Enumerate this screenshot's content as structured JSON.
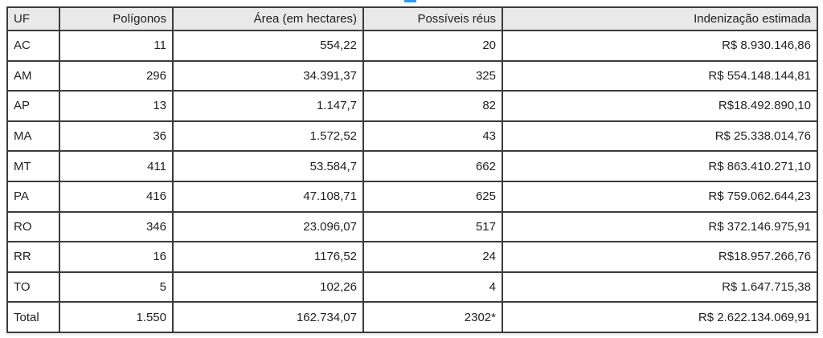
{
  "chart_data": {
    "type": "table",
    "columns": [
      "UF",
      "Polígonos",
      "Área (em hectares)",
      "Possíveis réus",
      "Indenização estimada"
    ],
    "column_ids": [
      "uf",
      "poligonos",
      "area",
      "reus",
      "indenizacao"
    ],
    "rows": [
      [
        "AC",
        "11",
        "554,22",
        "20",
        "R$ 8.930.146,86"
      ],
      [
        "AM",
        "296",
        "34.391,37",
        "325",
        "R$ 554.148.144,81"
      ],
      [
        "AP",
        "13",
        "1.147,7",
        "82",
        "R$18.492.890,10"
      ],
      [
        "MA",
        "36",
        "1.572,52",
        "43",
        "R$ 25.338.014,76"
      ],
      [
        "MT",
        "411",
        "53.584,7",
        "662",
        "R$ 863.410.271,10"
      ],
      [
        "PA",
        "416",
        "47.108,71",
        "625",
        "R$ 759.062.644,23"
      ],
      [
        "RO",
        "346",
        "23.096,07",
        "517",
        "R$ 372.146.975,91"
      ],
      [
        "RR",
        "16",
        "1176,52",
        "24",
        "R$18.957.266,76"
      ],
      [
        "TO",
        "5",
        "102,26",
        "4",
        "R$ 1.647.715,38"
      ],
      [
        "Total",
        "1.550",
        "162.734,07",
        "2302*",
        "R$ 2.622.134.069,91"
      ]
    ],
    "layout": {
      "header_align": [
        "left",
        "right",
        "right",
        "right",
        "right"
      ],
      "body_align": [
        "left",
        "right",
        "right",
        "right",
        "right"
      ],
      "grid": "all-borders"
    }
  },
  "style": {
    "header_bg": "#e9e9e9",
    "border_color": "#3b3b3b",
    "text_color": "#1f1f1f",
    "artifact_blue": "#2b9af3"
  }
}
